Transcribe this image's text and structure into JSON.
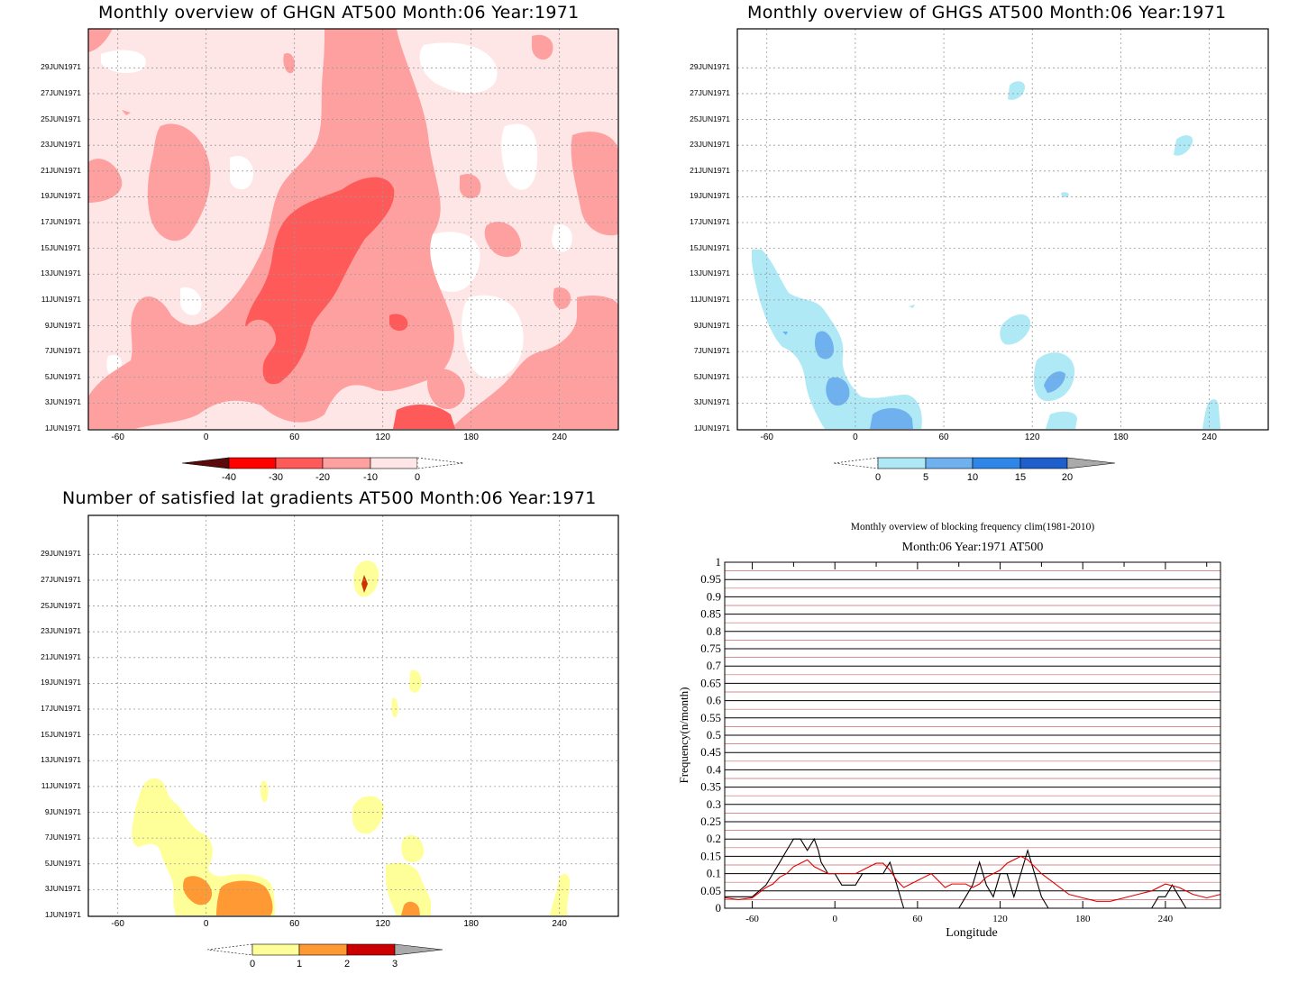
{
  "panels": {
    "ghgn": {
      "title": "Monthly overview of GHGN AT500 Month:06 Year:1971",
      "colorbar_labels": [
        "-40",
        "-30",
        "-20",
        "-10",
        "0"
      ],
      "colors": [
        "#5a0a0a",
        "#ff0000",
        "#ff5a5a",
        "#ffa0a0",
        "#ffe6e6",
        "#ffffff"
      ]
    },
    "ghgs": {
      "title": "Monthly overview of GHGS AT500 Month:06 Year:1971",
      "colorbar_labels": [
        "0",
        "5",
        "10",
        "15",
        "20"
      ],
      "colors": [
        "#ffffff",
        "#aee9f5",
        "#6fb1ef",
        "#2e86e8",
        "#1f5fcc",
        "#aaaaaa"
      ]
    },
    "grad": {
      "title": "Number of satisfied lat gradients AT500 Month:06 Year:1971",
      "colorbar_labels": [
        "0",
        "1",
        "2",
        "3"
      ],
      "colors": [
        "#ffffff",
        "#ffff99",
        "#ff9933",
        "#cc0000",
        "#aaaaaa"
      ]
    },
    "freq": {
      "title": "Monthly overview of blocking frequency clim(1981-2010)",
      "subtitle": "Month:06 Year:1971  AT500",
      "xlabel": "Longitude",
      "ylabel": "Frequency(n/month)"
    }
  },
  "map_axes": {
    "y_ticks": [
      "1JUN1971",
      "3JUN1971",
      "5JUN1971",
      "7JUN1971",
      "9JUN1971",
      "11JUN1971",
      "13JUN1971",
      "15JUN1971",
      "17JUN1971",
      "19JUN1971",
      "21JUN1971",
      "23JUN1971",
      "25JUN1971",
      "27JUN1971",
      "29JUN1971"
    ],
    "x_ticks": [
      "-60",
      "0",
      "60",
      "120",
      "180",
      "240"
    ]
  },
  "chart_data": [
    {
      "type": "heatmap",
      "title": "Monthly overview of GHGN AT500 Month:06 Year:1971",
      "x_ticks": [
        -60,
        0,
        60,
        120,
        180,
        240
      ],
      "xlim": [
        -80,
        280
      ],
      "y_ticks": [
        "1JUN1971",
        "3JUN1971",
        "5JUN1971",
        "7JUN1971",
        "9JUN1971",
        "11JUN1971",
        "13JUN1971",
        "15JUN1971",
        "17JUN1971",
        "19JUN1971",
        "21JUN1971",
        "23JUN1971",
        "25JUN1971",
        "27JUN1971",
        "29JUN1971"
      ],
      "levels": [
        -40,
        -30,
        -20,
        -10,
        0
      ],
      "colors": [
        "#5a0a0a",
        "#ff0000",
        "#ff5a5a",
        "#ffa0a0",
        "#ffe6e6",
        "#ffffff"
      ]
    },
    {
      "type": "heatmap",
      "title": "Monthly overview of GHGS AT500 Month:06 Year:1971",
      "x_ticks": [
        -60,
        0,
        60,
        120,
        180,
        240
      ],
      "xlim": [
        -80,
        280
      ],
      "y_ticks": [
        "1JUN1971",
        "3JUN1971",
        "5JUN1971",
        "7JUN1971",
        "9JUN1971",
        "11JUN1971",
        "13JUN1971",
        "15JUN1971",
        "17JUN1971",
        "19JUN1971",
        "21JUN1971",
        "23JUN1971",
        "25JUN1971",
        "27JUN1971",
        "29JUN1971"
      ],
      "levels": [
        0,
        5,
        10,
        15,
        20
      ],
      "colors": [
        "#ffffff",
        "#aee9f5",
        "#6fb1ef",
        "#2e86e8",
        "#1f5fcc",
        "#aaaaaa"
      ]
    },
    {
      "type": "heatmap",
      "title": "Number of satisfied lat gradients AT500 Month:06 Year:1971",
      "x_ticks": [
        -60,
        0,
        60,
        120,
        180,
        240
      ],
      "xlim": [
        -80,
        280
      ],
      "y_ticks": [
        "1JUN1971",
        "3JUN1971",
        "5JUN1971",
        "7JUN1971",
        "9JUN1971",
        "11JUN1971",
        "13JUN1971",
        "15JUN1971",
        "17JUN1971",
        "19JUN1971",
        "21JUN1971",
        "23JUN1971",
        "25JUN1971",
        "27JUN1971",
        "29JUN1971"
      ],
      "levels": [
        0,
        1,
        2,
        3
      ],
      "colors": [
        "#ffffff",
        "#ffff99",
        "#ff9933",
        "#cc0000",
        "#aaaaaa"
      ]
    },
    {
      "type": "line",
      "title": "Monthly overview of blocking frequency clim(1981-2010)",
      "subtitle": "Month:06 Year:1971  AT500",
      "xlabel": "Longitude",
      "ylabel": "Frequency(n/month)",
      "xlim": [
        -80,
        280
      ],
      "ylim": [
        0,
        1
      ],
      "x_ticks": [
        -60,
        0,
        60,
        120,
        180,
        240
      ],
      "y_ticks": [
        0,
        0.05,
        0.1,
        0.15,
        0.2,
        0.25,
        0.3,
        0.35,
        0.4,
        0.45,
        0.5,
        0.55,
        0.6,
        0.65,
        0.7,
        0.75,
        0.8,
        0.85,
        0.9,
        0.95,
        1
      ],
      "y_tick_labels": [
        "0",
        "0.05",
        "0.1",
        "0.15",
        "0.2",
        "0.25",
        "0.3",
        "0.35",
        "0.4",
        "0.45",
        "0.5",
        "0.55",
        "0.6",
        "0.65",
        "0.7",
        "0.75",
        "0.8",
        "0.85",
        "0.9",
        "0.95",
        "1"
      ],
      "grid": true,
      "series": [
        {
          "color": "#000000",
          "x": [
            -80,
            -65,
            -60,
            -55,
            -50,
            -45,
            -40,
            -35,
            -30,
            -25,
            -20,
            -15,
            -12,
            -10,
            -5,
            0,
            5,
            10,
            15,
            20,
            25,
            30,
            35,
            40,
            45,
            50,
            55,
            60,
            65,
            70,
            75,
            80,
            85,
            90,
            95,
            100,
            105,
            110,
            115,
            120,
            125,
            130,
            135,
            140,
            145,
            150,
            155,
            160,
            170,
            180,
            190,
            200,
            210,
            220,
            230,
            235,
            240,
            245,
            250,
            255,
            260,
            270,
            280
          ],
          "y": [
            0.033,
            0.033,
            0.033,
            0.05,
            0.067,
            0.1,
            0.133,
            0.167,
            0.2,
            0.2,
            0.167,
            0.2,
            0.167,
            0.133,
            0.1,
            0.1,
            0.067,
            0.067,
            0.067,
            0.1,
            0.1,
            0.1,
            0.1,
            0.133,
            0.067,
            0.0,
            0.0,
            0.0,
            0.0,
            0.0,
            0.0,
            0.0,
            0.0,
            0.0,
            0.033,
            0.067,
            0.133,
            0.067,
            0.033,
            0.1,
            0.1,
            0.033,
            0.1,
            0.167,
            0.1,
            0.033,
            0.0,
            0.0,
            0.0,
            0.0,
            0.0,
            0.0,
            0.0,
            0.0,
            0.0,
            0.033,
            0.033,
            0.067,
            0.033,
            0.0,
            0.0,
            0.0,
            0.0
          ]
        },
        {
          "color": "#e00000",
          "x": [
            -80,
            -70,
            -60,
            -50,
            -45,
            -40,
            -35,
            -30,
            -25,
            -20,
            -15,
            -10,
            -5,
            0,
            5,
            10,
            15,
            20,
            25,
            30,
            35,
            40,
            45,
            50,
            55,
            60,
            65,
            70,
            75,
            80,
            85,
            90,
            95,
            100,
            105,
            110,
            115,
            120,
            125,
            130,
            135,
            140,
            145,
            150,
            160,
            170,
            180,
            190,
            200,
            210,
            220,
            230,
            240,
            250,
            260,
            270,
            280
          ],
          "y": [
            0.03,
            0.025,
            0.03,
            0.06,
            0.07,
            0.09,
            0.1,
            0.12,
            0.13,
            0.14,
            0.12,
            0.11,
            0.1,
            0.1,
            0.1,
            0.1,
            0.1,
            0.11,
            0.12,
            0.13,
            0.13,
            0.11,
            0.08,
            0.06,
            0.07,
            0.08,
            0.09,
            0.1,
            0.08,
            0.06,
            0.07,
            0.07,
            0.07,
            0.06,
            0.07,
            0.09,
            0.1,
            0.11,
            0.13,
            0.14,
            0.15,
            0.14,
            0.12,
            0.1,
            0.07,
            0.04,
            0.03,
            0.02,
            0.02,
            0.03,
            0.04,
            0.05,
            0.07,
            0.06,
            0.04,
            0.03,
            0.04
          ]
        }
      ]
    }
  ]
}
